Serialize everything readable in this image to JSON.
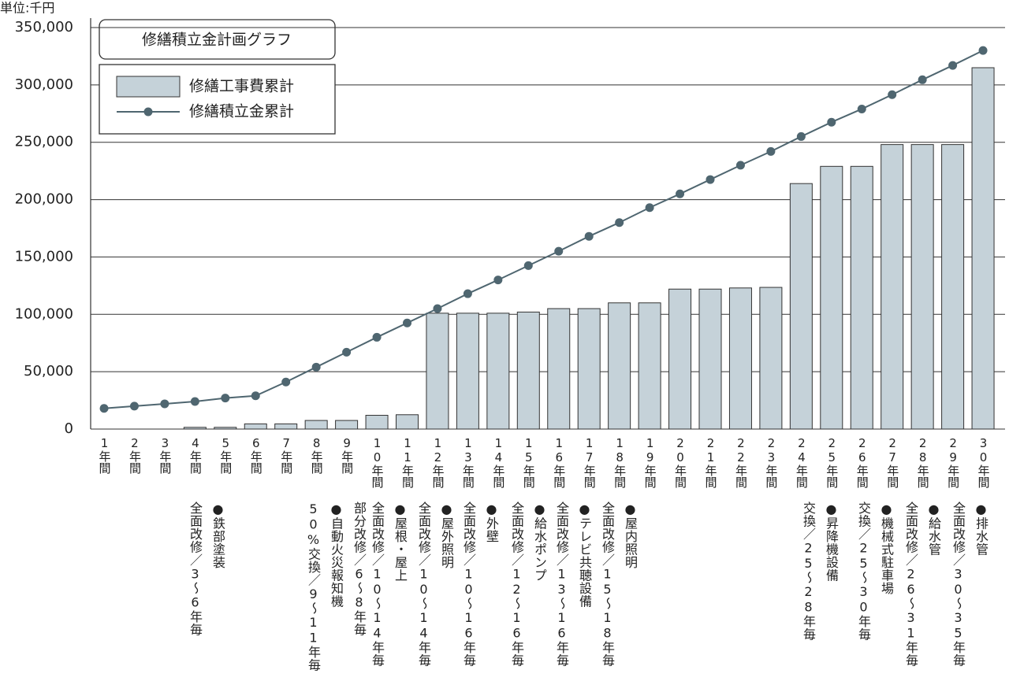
{
  "chart_data": {
    "type": "bar",
    "unit_label": "単位:千円",
    "title": "修繕積立金計画グラフ",
    "categories": [
      "1年間",
      "2年間",
      "3年間",
      "4年間",
      "5年間",
      "6年間",
      "7年間",
      "8年間",
      "9年間",
      "10年間",
      "11年間",
      "12年間",
      "13年間",
      "14年間",
      "15年間",
      "16年間",
      "17年間",
      "18年間",
      "19年間",
      "20年間",
      "21年間",
      "22年間",
      "23年間",
      "24年間",
      "25年間",
      "26年間",
      "27年間",
      "28年間",
      "29年間",
      "30年間"
    ],
    "series": [
      {
        "name": "修繕工事費累計",
        "type": "bar",
        "color": "#c5d2d9",
        "values": [
          0,
          0,
          0,
          1500,
          1500,
          4500,
          4500,
          7500,
          7500,
          12000,
          12500,
          101000,
          101000,
          101000,
          102000,
          105000,
          105000,
          110000,
          110000,
          122000,
          122000,
          123000,
          123500,
          214000,
          229000,
          229000,
          248000,
          248000,
          248000,
          315000
        ]
      },
      {
        "name": "修繕積立金累計",
        "type": "line",
        "color": "#4f6670",
        "values": [
          18000,
          20000,
          22000,
          24000,
          27000,
          29000,
          41000,
          54000,
          67000,
          80000,
          92500,
          105000,
          118000,
          130000,
          142500,
          155000,
          168000,
          180000,
          193000,
          205000,
          217500,
          230000,
          242000,
          255000,
          267500,
          279000,
          291500,
          304500,
          317000,
          330000
        ]
      }
    ],
    "ylim": [
      0,
      350000
    ],
    "yticks": [
      0,
      {
        "value": 50000,
        "label": "50,000"
      },
      {
        "value": 100000,
        "label": "100,000"
      },
      {
        "value": 150000,
        "label": "150,000"
      },
      {
        "value": 200000,
        "label": "200,000"
      },
      {
        "value": 250000,
        "label": "250,000"
      },
      {
        "value": 300000,
        "label": "300,000"
      },
      {
        "value": 350000,
        "label": "350,000"
      }
    ],
    "grid": true,
    "notes": [
      [
        "●鉄部塗装",
        "全面改修／3〜6年毎"
      ],
      [
        "部分改修／6〜8年毎",
        "●自動火災報知機",
        "50%交換／9〜11年毎"
      ],
      [
        "●屋根・屋上",
        "全面改修／10〜14年毎"
      ],
      [
        "●屋外照明",
        "全面改修／10〜14年毎"
      ],
      [
        "●外壁",
        "全面改修／10〜16年毎"
      ],
      [
        "●給水ポンプ",
        "全面改修／12〜16年毎"
      ],
      [
        "●テレビ共聴設備",
        "全面改修／13〜16年毎"
      ],
      [
        "●屋内照明",
        "全面改修／15〜18年毎"
      ],
      [
        "●昇降機設備",
        "交換／25〜28年毎"
      ],
      [
        "●機械式駐車場",
        "交換／25〜30年毎"
      ],
      [
        "●給水管",
        "全面改修／26〜31年毎"
      ],
      [
        "●排水管",
        "全面改修／30〜35年毎"
      ]
    ]
  }
}
